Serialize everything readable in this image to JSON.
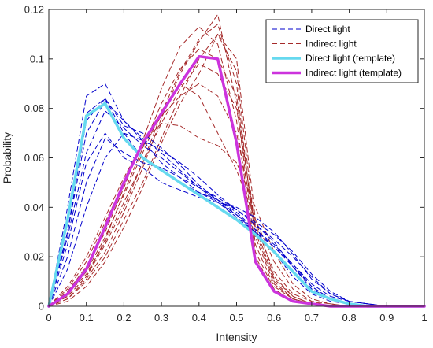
{
  "chart_data": {
    "type": "line",
    "xlabel": "Intensity",
    "ylabel": "Probability",
    "xlim": [
      0,
      1
    ],
    "ylim": [
      0,
      0.12
    ],
    "xticks": [
      "0",
      "0.1",
      "0.2",
      "0.3",
      "0.4",
      "0.5",
      "0.6",
      "0.7",
      "0.8",
      "0.9",
      "1"
    ],
    "yticks": [
      "0",
      "0.02",
      "0.04",
      "0.06",
      "0.08",
      "0.1",
      "0.12"
    ],
    "grid": false,
    "legend_position": "top-right",
    "legend": [
      {
        "label": "Direct light",
        "color": "#0000cc",
        "style": "dashed",
        "width": 1
      },
      {
        "label": "Indirect light",
        "color": "#a52a2a",
        "style": "dashed",
        "width": 1
      },
      {
        "label": "Direct light (template)",
        "color": "#66d9ef",
        "style": "solid",
        "width": 3.5
      },
      {
        "label": "Indirect light (template)",
        "color": "#cc33dd",
        "style": "solid",
        "width": 3.5
      }
    ],
    "x": [
      0,
      0.05,
      0.1,
      0.15,
      0.2,
      0.25,
      0.3,
      0.35,
      0.4,
      0.45,
      0.5,
      0.55,
      0.6,
      0.65,
      0.7,
      0.75,
      0.8,
      0.85,
      0.9,
      0.95,
      1
    ],
    "series": [
      {
        "group": "direct",
        "values": [
          0,
          0.04,
          0.085,
          0.09,
          0.075,
          0.067,
          0.058,
          0.052,
          0.046,
          0.042,
          0.037,
          0.03,
          0.022,
          0.012,
          0.005,
          0.002,
          0.001,
          0,
          0,
          0,
          0
        ]
      },
      {
        "group": "direct",
        "values": [
          0,
          0.035,
          0.078,
          0.084,
          0.07,
          0.06,
          0.055,
          0.05,
          0.046,
          0.043,
          0.039,
          0.033,
          0.026,
          0.016,
          0.007,
          0.003,
          0.001,
          0,
          0,
          0,
          0
        ]
      },
      {
        "group": "direct",
        "values": [
          0,
          0.03,
          0.07,
          0.083,
          0.075,
          0.068,
          0.062,
          0.055,
          0.048,
          0.042,
          0.036,
          0.03,
          0.024,
          0.016,
          0.008,
          0.003,
          0.001,
          0,
          0,
          0,
          0
        ]
      },
      {
        "group": "direct",
        "values": [
          0,
          0.028,
          0.062,
          0.079,
          0.072,
          0.065,
          0.06,
          0.054,
          0.048,
          0.043,
          0.038,
          0.031,
          0.024,
          0.017,
          0.009,
          0.004,
          0.002,
          0.001,
          0,
          0,
          0
        ]
      },
      {
        "group": "direct",
        "values": [
          0,
          0.02,
          0.05,
          0.068,
          0.062,
          0.058,
          0.056,
          0.052,
          0.048,
          0.044,
          0.039,
          0.034,
          0.029,
          0.022,
          0.013,
          0.006,
          0.002,
          0.001,
          0,
          0,
          0
        ]
      },
      {
        "group": "direct",
        "values": [
          0,
          0.03,
          0.075,
          0.084,
          0.073,
          0.07,
          0.064,
          0.057,
          0.049,
          0.043,
          0.037,
          0.031,
          0.025,
          0.017,
          0.008,
          0.003,
          0.001,
          0,
          0,
          0,
          0
        ]
      },
      {
        "group": "direct",
        "values": [
          0,
          0.015,
          0.04,
          0.06,
          0.07,
          0.067,
          0.063,
          0.058,
          0.052,
          0.045,
          0.039,
          0.033,
          0.027,
          0.02,
          0.012,
          0.005,
          0.002,
          0.001,
          0,
          0,
          0
        ]
      },
      {
        "group": "direct",
        "values": [
          0,
          0.025,
          0.058,
          0.07,
          0.06,
          0.056,
          0.05,
          0.047,
          0.044,
          0.042,
          0.04,
          0.036,
          0.03,
          0.021,
          0.011,
          0.005,
          0.002,
          0.001,
          0,
          0,
          0
        ]
      },
      {
        "group": "indirect",
        "values": [
          0,
          0.004,
          0.012,
          0.025,
          0.04,
          0.058,
          0.078,
          0.095,
          0.108,
          0.114,
          0.09,
          0.025,
          0.008,
          0.003,
          0.001,
          0,
          0,
          0,
          0,
          0,
          0
        ]
      },
      {
        "group": "indirect",
        "values": [
          0,
          0.006,
          0.016,
          0.03,
          0.048,
          0.067,
          0.088,
          0.105,
          0.113,
          0.106,
          0.075,
          0.02,
          0.006,
          0.002,
          0.001,
          0,
          0,
          0,
          0,
          0,
          0
        ]
      },
      {
        "group": "indirect",
        "values": [
          0,
          0.003,
          0.01,
          0.02,
          0.035,
          0.05,
          0.068,
          0.085,
          0.1,
          0.11,
          0.095,
          0.03,
          0.01,
          0.003,
          0.001,
          0,
          0,
          0,
          0,
          0,
          0
        ]
      },
      {
        "group": "indirect",
        "values": [
          0,
          0.005,
          0.014,
          0.028,
          0.045,
          0.062,
          0.079,
          0.09,
          0.085,
          0.07,
          0.055,
          0.035,
          0.018,
          0.007,
          0.002,
          0.001,
          0,
          0,
          0,
          0,
          0
        ]
      },
      {
        "group": "indirect",
        "values": [
          0,
          0.008,
          0.02,
          0.036,
          0.052,
          0.066,
          0.074,
          0.073,
          0.068,
          0.065,
          0.058,
          0.04,
          0.022,
          0.009,
          0.003,
          0.001,
          0,
          0,
          0,
          0,
          0
        ]
      },
      {
        "group": "indirect",
        "values": [
          0,
          0.004,
          0.012,
          0.027,
          0.046,
          0.064,
          0.082,
          0.096,
          0.104,
          0.1,
          0.085,
          0.028,
          0.009,
          0.003,
          0.001,
          0,
          0,
          0,
          0,
          0,
          0
        ]
      },
      {
        "group": "indirect",
        "values": [
          0,
          0.002,
          0.008,
          0.018,
          0.032,
          0.048,
          0.066,
          0.082,
          0.094,
          0.11,
          0.1,
          0.035,
          0.012,
          0.004,
          0.001,
          0,
          0,
          0,
          0,
          0,
          0
        ]
      },
      {
        "group": "indirect",
        "values": [
          0,
          0.005,
          0.013,
          0.026,
          0.042,
          0.058,
          0.074,
          0.088,
          0.098,
          0.094,
          0.08,
          0.032,
          0.011,
          0.004,
          0.001,
          0,
          0,
          0,
          0,
          0,
          0
        ]
      },
      {
        "group": "indirect",
        "values": [
          0,
          0.007,
          0.018,
          0.034,
          0.05,
          0.065,
          0.077,
          0.085,
          0.09,
          0.085,
          0.07,
          0.033,
          0.014,
          0.005,
          0.002,
          0,
          0,
          0,
          0,
          0,
          0
        ]
      },
      {
        "group": "indirect",
        "values": [
          0,
          0.003,
          0.011,
          0.022,
          0.038,
          0.056,
          0.076,
          0.094,
          0.107,
          0.118,
          0.082,
          0.022,
          0.007,
          0.002,
          0.001,
          0,
          0,
          0,
          0,
          0,
          0
        ]
      },
      {
        "group": "direct-template",
        "values": [
          0,
          0.035,
          0.077,
          0.082,
          0.068,
          0.06,
          0.055,
          0.05,
          0.045,
          0.04,
          0.035,
          0.029,
          0.022,
          0.014,
          0.006,
          0.003,
          0.001,
          0,
          0,
          0,
          0
        ]
      },
      {
        "group": "indirect-template",
        "values": [
          0,
          0.005,
          0.015,
          0.032,
          0.05,
          0.066,
          0.078,
          0.09,
          0.101,
          0.1,
          0.066,
          0.018,
          0.006,
          0.002,
          0.001,
          0,
          0,
          0,
          0,
          0,
          0
        ]
      }
    ]
  }
}
